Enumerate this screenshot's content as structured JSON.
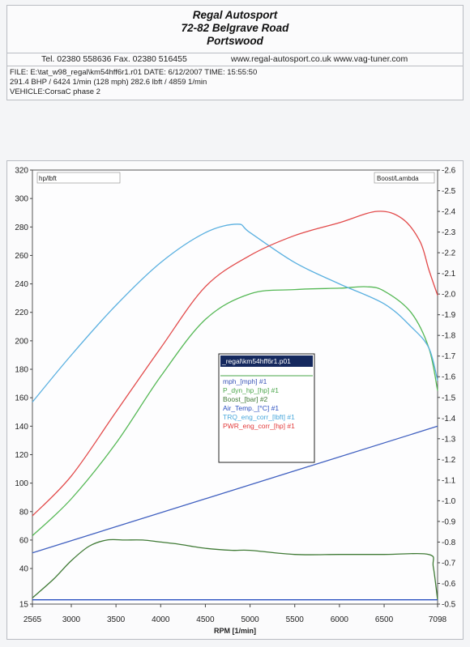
{
  "header": {
    "line1": "Regal Autosport",
    "line2": "72-82 Belgrave Road",
    "line3": "Portswood",
    "contact_tel": "Tel. 02380 558636  Fax. 02380 516455",
    "contact_web": "www.regal-autosport.co.uk www.vag-tuner.com"
  },
  "info": {
    "file_line": "FILE: E:\\tat_w98_regal\\km54hff6r1.r01  DATE: 6/12/2007  TIME: 15:55:50",
    "power_line": "291.4 BHP / 6424 1/min (128 mph)    282.6 lbft / 4859 1/min",
    "vehicle_line": "VEHICLE:CorsaC phase 2"
  },
  "chart_data": {
    "type": "line",
    "xlabel": "RPM  [1/min]",
    "left_axis_label": "hp/lbft",
    "right_axis_label": "Boost/Lambda",
    "xlim": [
      2565,
      7098
    ],
    "ylim_left": [
      15,
      320
    ],
    "ylim_right": [
      -0.5,
      -2.6
    ],
    "x_ticks": [
      "2565",
      "3000",
      "3500",
      "4000",
      "4500",
      "5000",
      "5500",
      "6000",
      "6500",
      "7098"
    ],
    "y_left_ticks": [
      "15",
      "40",
      "60",
      "80",
      "100",
      "120",
      "140",
      "160",
      "180",
      "200",
      "220",
      "240",
      "260",
      "280",
      "300",
      "320"
    ],
    "y_right_ticks": [
      "-0.5",
      "-0.6",
      "-0.7",
      "-0.8",
      "-0.9",
      "-1.0",
      "-1.1",
      "-1.2",
      "-1.3",
      "-1.4",
      "-1.5",
      "-1.6",
      "-1.7",
      "-1.8",
      "-1.9",
      "-2.0",
      "-2.1",
      "-2.2",
      "-2.3",
      "-2.4",
      "-2.5",
      "-2.6"
    ],
    "grid": false,
    "legend": {
      "title": "_regal\\km54hff6r1.p01",
      "entries": [
        {
          "label": "mph_[mph] #1",
          "color": "#3a55b8"
        },
        {
          "label": "P_dyn_hp_[hp] #1",
          "color": "#4aa64a"
        },
        {
          "label": "Boost_[bar] #2",
          "color": "#3f7a35"
        },
        {
          "label": "Air_Temp._[°C] #1",
          "color": "#2a4fc0"
        },
        {
          "label": "TRQ_eng_corr_[lbft] #1",
          "color": "#4aa8dc"
        },
        {
          "label": "PWR_eng_corr_[hp] #1",
          "color": "#e23a3a"
        }
      ],
      "placement": "center"
    },
    "series": [
      {
        "label": "mph_[mph]",
        "color": "#4060c0",
        "axis": "left",
        "x": [
          2565,
          7098
        ],
        "y": [
          51,
          140
        ]
      },
      {
        "label": "P_dyn_hp_[hp]",
        "color": "#55b855",
        "axis": "left",
        "x": [
          2565,
          3000,
          3500,
          4000,
          4500,
          5000,
          5500,
          6000,
          6300,
          6500,
          6800,
          7000,
          7098
        ],
        "y": [
          63,
          89,
          128,
          175,
          215,
          233,
          236,
          237,
          238,
          235,
          220,
          195,
          165
        ]
      },
      {
        "label": "Boost_[bar]",
        "color": "#3f7a35",
        "axis": "right",
        "x": [
          2565,
          2800,
          3000,
          3200,
          3400,
          3600,
          3800,
          4000,
          4200,
          4500,
          4800,
          5000,
          5500,
          6000,
          6500,
          7000,
          7050,
          7098
        ],
        "y": [
          -0.53,
          -0.62,
          -0.71,
          -0.78,
          -0.81,
          -0.81,
          -0.81,
          -0.8,
          -0.79,
          -0.77,
          -0.76,
          -0.76,
          -0.74,
          -0.74,
          -0.74,
          -0.74,
          -0.68,
          -0.52
        ]
      },
      {
        "label": "Air_Temp._[°C]",
        "color": "#2a4fc0",
        "axis": "left",
        "x": [
          2565,
          7098
        ],
        "y": [
          18,
          18
        ]
      },
      {
        "label": "TRQ_eng_corr_[lbft]",
        "color": "#5ab0e0",
        "axis": "left",
        "x": [
          2565,
          3000,
          3500,
          4000,
          4500,
          4859,
          5000,
          5500,
          6000,
          6500,
          6800,
          7000,
          7098
        ],
        "y": [
          157,
          190,
          225,
          255,
          276,
          282,
          276,
          255,
          240,
          226,
          210,
          195,
          172
        ]
      },
      {
        "label": "PWR_eng_corr_[hp]",
        "color": "#e24a4a",
        "axis": "left",
        "x": [
          2565,
          3000,
          3500,
          4000,
          4500,
          5000,
          5500,
          6000,
          6424,
          6700,
          6900,
          7000,
          7098
        ],
        "y": [
          77,
          105,
          150,
          195,
          238,
          260,
          274,
          283,
          291,
          286,
          270,
          250,
          232
        ]
      }
    ]
  }
}
